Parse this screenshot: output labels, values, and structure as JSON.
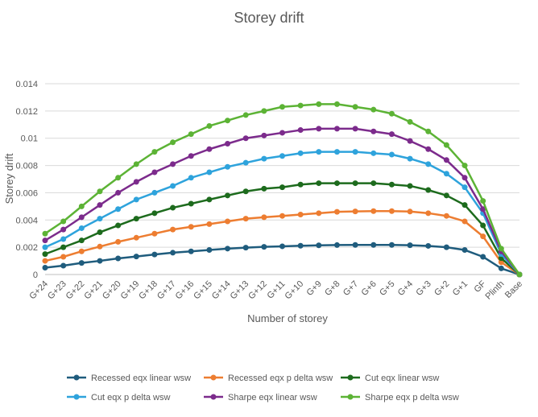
{
  "chart_data": {
    "type": "line",
    "title": "Storey drift",
    "xlabel": "Number of storey",
    "ylabel": "Storey drift",
    "ylim": [
      0,
      0.014
    ],
    "yticks": [
      "0",
      "0.002",
      "0.004",
      "0.006",
      "0.008",
      "0.01",
      "0.012",
      "0.014"
    ],
    "grid": true,
    "legend_position": "bottom",
    "categories": [
      "G+24",
      "G+23",
      "G+22",
      "G+21",
      "G+20",
      "G+19",
      "G+18",
      "G+17",
      "G+16",
      "G+15",
      "G+14",
      "G+13",
      "G+12",
      "G+11",
      "G+10",
      "G+9",
      "G+8",
      "G+7",
      "G+6",
      "G+5",
      "G+4",
      "G+3",
      "G+2",
      "G+1",
      "GF",
      "Plinth",
      "Base"
    ],
    "series": [
      {
        "name": "Recessed eqx linear wsw",
        "color": "#1f5c7d",
        "values": [
          0.0005,
          0.00065,
          0.00085,
          0.001,
          0.00118,
          0.00132,
          0.00147,
          0.0016,
          0.0017,
          0.0018,
          0.0019,
          0.00197,
          0.00203,
          0.00207,
          0.00211,
          0.00214,
          0.00216,
          0.00217,
          0.00217,
          0.00217,
          0.00215,
          0.0021,
          0.002,
          0.0018,
          0.0013,
          0.00045,
          0
        ]
      },
      {
        "name": "Recessed eqx p delta wsw",
        "color": "#ed7d31",
        "values": [
          0.001,
          0.0013,
          0.0017,
          0.00205,
          0.0024,
          0.0027,
          0.003,
          0.0033,
          0.0035,
          0.0037,
          0.0039,
          0.0041,
          0.0042,
          0.0043,
          0.0044,
          0.0045,
          0.0046,
          0.00463,
          0.00465,
          0.00465,
          0.00462,
          0.0045,
          0.0043,
          0.0039,
          0.0028,
          0.0009,
          0
        ]
      },
      {
        "name": "Cut eqx linear wsw",
        "color": "#1d6b1d",
        "values": [
          0.0015,
          0.002,
          0.0025,
          0.0031,
          0.0036,
          0.0041,
          0.0045,
          0.0049,
          0.0052,
          0.0055,
          0.0058,
          0.0061,
          0.0063,
          0.0064,
          0.0066,
          0.0067,
          0.0067,
          0.0067,
          0.0067,
          0.0066,
          0.0065,
          0.0062,
          0.0058,
          0.0051,
          0.0036,
          0.0012,
          0
        ]
      },
      {
        "name": "Cut eqx p delta wsw",
        "color": "#2ea3dc",
        "values": [
          0.002,
          0.0026,
          0.0034,
          0.0041,
          0.0048,
          0.0055,
          0.006,
          0.0065,
          0.0071,
          0.0075,
          0.0079,
          0.0082,
          0.0085,
          0.0087,
          0.0089,
          0.009,
          0.009,
          0.009,
          0.0089,
          0.0088,
          0.0085,
          0.0081,
          0.0074,
          0.0064,
          0.0045,
          0.0015,
          0
        ]
      },
      {
        "name": "Sharpe eqx linear wsw",
        "color": "#7c2b8c",
        "values": [
          0.0025,
          0.0033,
          0.0042,
          0.0051,
          0.006,
          0.0068,
          0.0075,
          0.0081,
          0.0087,
          0.0092,
          0.0096,
          0.01,
          0.0102,
          0.0104,
          0.0106,
          0.0107,
          0.0107,
          0.0107,
          0.0105,
          0.0103,
          0.0098,
          0.0092,
          0.0084,
          0.0071,
          0.0048,
          0.0017,
          0
        ]
      },
      {
        "name": "Sharpe eqx p delta wsw",
        "color": "#5cb335",
        "values": [
          0.003,
          0.0039,
          0.005,
          0.0061,
          0.0071,
          0.0081,
          0.009,
          0.0097,
          0.0103,
          0.0109,
          0.0113,
          0.0117,
          0.012,
          0.0123,
          0.0124,
          0.0125,
          0.0125,
          0.0123,
          0.0121,
          0.0118,
          0.0112,
          0.0105,
          0.0095,
          0.008,
          0.0054,
          0.0019,
          0
        ]
      }
    ]
  }
}
